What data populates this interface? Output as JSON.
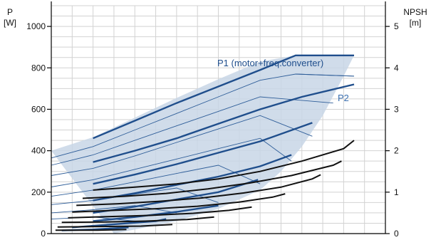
{
  "chart_data": {
    "type": "line",
    "y_left": {
      "label_line1": "P",
      "label_line2": "[W]",
      "ylim": [
        0,
        1100
      ],
      "ticks": [
        "0",
        "200",
        "400",
        "600",
        "800",
        "1000"
      ]
    },
    "y_right": {
      "label_line1": "NPSH",
      "label_line2": "[m]",
      "ylim": [
        0,
        5.5
      ],
      "ticks": [
        "0",
        "1",
        "2",
        "3",
        "4",
        "5"
      ]
    },
    "x": {
      "xlim": [
        0,
        16
      ],
      "gridlines": 16
    },
    "grid": true,
    "colors": {
      "power": "#1f4e8c",
      "envelope_fill": "#c8d6e6",
      "thin": "#2f5e99",
      "npsh": "#111111"
    },
    "annotations": [
      {
        "text": "P1 (motor+freq.converter)",
        "x": 8.0,
        "y": 905
      },
      {
        "text": "P2",
        "x": 14.0,
        "y": 700
      }
    ],
    "envelope": {
      "upper": [
        [
          0,
          400
        ],
        [
          2,
          465
        ],
        [
          4,
          560
        ],
        [
          6,
          655
        ],
        [
          8,
          745
        ],
        [
          10,
          830
        ],
        [
          11.7,
          860
        ],
        [
          14.5,
          860
        ]
      ],
      "lower": [
        [
          14.5,
          860
        ],
        [
          14,
          760
        ],
        [
          13,
          570
        ],
        [
          12,
          420
        ],
        [
          11,
          300
        ],
        [
          10,
          210
        ],
        [
          8,
          120
        ],
        [
          6,
          60
        ],
        [
          4,
          20
        ],
        [
          3,
          0
        ]
      ]
    },
    "p1_top": {
      "name": "P1 (motor+freq.converter)",
      "points": [
        [
          2,
          460
        ],
        [
          4,
          545
        ],
        [
          6,
          630
        ],
        [
          8,
          710
        ],
        [
          10,
          790
        ],
        [
          11.7,
          860
        ],
        [
          14.5,
          860
        ]
      ]
    },
    "p2_top": {
      "name": "P2",
      "points": [
        [
          11.7,
          770
        ],
        [
          14.5,
          760
        ]
      ]
    },
    "power_curves_thick": [
      {
        "points": [
          [
            2,
            345
          ],
          [
            4,
            400
          ],
          [
            6,
            460
          ],
          [
            8,
            530
          ],
          [
            10,
            600
          ],
          [
            12,
            660
          ],
          [
            14.5,
            720
          ]
        ]
      },
      {
        "points": [
          [
            2,
            240
          ],
          [
            4,
            285
          ],
          [
            6,
            335
          ],
          [
            8,
            390
          ],
          [
            10,
            445
          ],
          [
            12.5,
            535
          ]
        ]
      },
      {
        "points": [
          [
            2,
            160
          ],
          [
            4,
            195
          ],
          [
            6,
            235
          ],
          [
            8,
            275
          ],
          [
            10,
            325
          ],
          [
            11.5,
            380
          ]
        ]
      },
      {
        "points": [
          [
            2,
            100
          ],
          [
            4,
            130
          ],
          [
            6,
            165
          ],
          [
            8,
            200
          ],
          [
            9.9,
            260
          ]
        ]
      },
      {
        "points": [
          [
            2,
            60
          ],
          [
            4,
            80
          ],
          [
            6,
            105
          ],
          [
            8,
            135
          ]
        ]
      },
      {
        "points": [
          [
            1,
            30
          ],
          [
            3,
            45
          ],
          [
            5,
            60
          ],
          [
            5.5,
            70
          ]
        ]
      },
      {
        "points": [
          [
            0.5,
            15
          ],
          [
            2,
            20
          ],
          [
            3.7,
            30
          ]
        ]
      }
    ],
    "power_curves_thin": [
      {
        "points": [
          [
            0,
            365
          ],
          [
            2,
            420
          ],
          [
            4,
            500
          ],
          [
            6,
            580
          ],
          [
            8,
            660
          ],
          [
            10,
            740
          ],
          [
            11.7,
            770
          ],
          [
            14.5,
            760
          ]
        ]
      },
      {
        "points": [
          [
            0,
            330
          ],
          [
            2,
            380
          ],
          [
            4,
            450
          ],
          [
            6,
            520
          ],
          [
            8,
            590
          ],
          [
            10,
            660
          ],
          [
            13.5,
            630
          ]
        ]
      },
      {
        "points": [
          [
            0,
            280
          ],
          [
            2,
            315
          ],
          [
            4,
            375
          ],
          [
            6,
            440
          ],
          [
            8,
            505
          ],
          [
            10,
            570
          ],
          [
            12.5,
            470
          ]
        ]
      },
      {
        "points": [
          [
            0,
            225
          ],
          [
            2,
            260
          ],
          [
            4,
            310
          ],
          [
            6,
            360
          ],
          [
            8,
            410
          ],
          [
            10,
            460
          ],
          [
            11.5,
            350
          ]
        ]
      },
      {
        "points": [
          [
            0,
            180
          ],
          [
            2,
            210
          ],
          [
            4,
            250
          ],
          [
            6,
            290
          ],
          [
            8,
            330
          ],
          [
            10,
            240
          ]
        ]
      },
      {
        "points": [
          [
            0,
            140
          ],
          [
            2,
            160
          ],
          [
            4,
            190
          ],
          [
            6,
            220
          ],
          [
            8,
            150
          ]
        ]
      },
      {
        "points": [
          [
            0,
            100
          ],
          [
            2,
            115
          ],
          [
            4,
            135
          ],
          [
            6,
            100
          ]
        ]
      },
      {
        "points": [
          [
            0,
            70
          ],
          [
            2,
            80
          ],
          [
            4,
            60
          ]
        ]
      }
    ],
    "npsh_curves": [
      {
        "points": [
          [
            2,
            1.05
          ],
          [
            4,
            1.12
          ],
          [
            6,
            1.2
          ],
          [
            8,
            1.32
          ],
          [
            10,
            1.5
          ],
          [
            12,
            1.75
          ],
          [
            14,
            2.05
          ],
          [
            14.5,
            2.25
          ]
        ]
      },
      {
        "points": [
          [
            1.5,
            0.85
          ],
          [
            3.5,
            0.9
          ],
          [
            5.5,
            0.97
          ],
          [
            7.5,
            1.08
          ],
          [
            9.5,
            1.22
          ],
          [
            11.5,
            1.4
          ],
          [
            13.5,
            1.65
          ],
          [
            13.9,
            1.75
          ]
        ]
      },
      {
        "points": [
          [
            1.2,
            0.68
          ],
          [
            3.2,
            0.72
          ],
          [
            5.2,
            0.78
          ],
          [
            7.2,
            0.86
          ],
          [
            9.2,
            0.98
          ],
          [
            11,
            1.12
          ],
          [
            12.5,
            1.32
          ],
          [
            12.9,
            1.42
          ]
        ]
      },
      {
        "points": [
          [
            1,
            0.52
          ],
          [
            3,
            0.56
          ],
          [
            5,
            0.6
          ],
          [
            7,
            0.66
          ],
          [
            9,
            0.76
          ],
          [
            10.6,
            0.88
          ],
          [
            11.2,
            0.96
          ]
        ]
      },
      {
        "points": [
          [
            0.8,
            0.38
          ],
          [
            2.8,
            0.41
          ],
          [
            4.8,
            0.44
          ],
          [
            6.8,
            0.49
          ],
          [
            8.5,
            0.56
          ],
          [
            9.6,
            0.64
          ]
        ]
      },
      {
        "points": [
          [
            0.5,
            0.27
          ],
          [
            2.5,
            0.28
          ],
          [
            4.5,
            0.3
          ],
          [
            6.5,
            0.34
          ],
          [
            7.8,
            0.4
          ]
        ]
      },
      {
        "points": [
          [
            0.3,
            0.16
          ],
          [
            2.3,
            0.17
          ],
          [
            4.3,
            0.18
          ],
          [
            5.8,
            0.22
          ]
        ]
      },
      {
        "points": [
          [
            0.2,
            0.08
          ],
          [
            2.2,
            0.08
          ],
          [
            3.6,
            0.1
          ]
        ]
      }
    ]
  }
}
